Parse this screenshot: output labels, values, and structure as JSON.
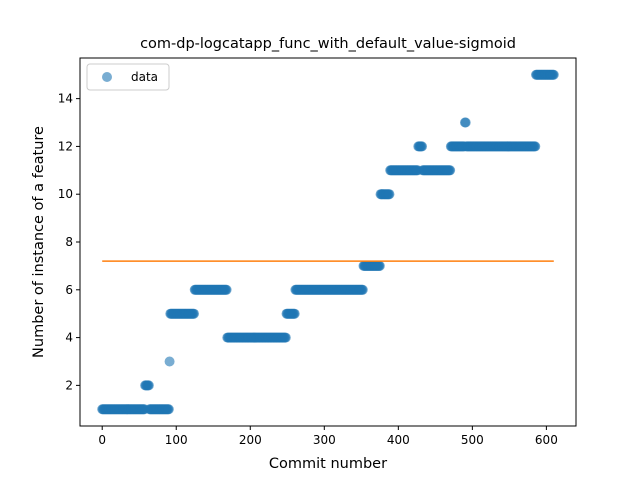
{
  "chart_data": {
    "type": "scatter",
    "title": "com-dp-logcatapp_func_with_default_value-sigmoid",
    "xlabel": "Commit number",
    "ylabel": "Number of instance of a feature",
    "xlim": [
      -30,
      640
    ],
    "ylim": [
      0.3,
      15.7
    ],
    "xticks": [
      0,
      100,
      200,
      300,
      400,
      500,
      600
    ],
    "yticks": [
      2,
      4,
      6,
      8,
      10,
      12,
      14
    ],
    "legend": {
      "position": "upper-left",
      "entries": [
        "data"
      ]
    },
    "colors": {
      "points": "#1f77b4",
      "line": "#ff7f0e"
    },
    "point_segments": [
      {
        "x_start": 0,
        "x_end": 57,
        "y": 1
      },
      {
        "x_start": 58,
        "x_end": 63,
        "y": 2
      },
      {
        "x_start": 64,
        "x_end": 90,
        "y": 1
      },
      {
        "x_start": 91,
        "x_end": 91,
        "y": 3
      },
      {
        "x_start": 92,
        "x_end": 124,
        "y": 5
      },
      {
        "x_start": 125,
        "x_end": 168,
        "y": 6
      },
      {
        "x_start": 169,
        "x_end": 248,
        "y": 4
      },
      {
        "x_start": 249,
        "x_end": 260,
        "y": 5
      },
      {
        "x_start": 261,
        "x_end": 352,
        "y": 6
      },
      {
        "x_start": 353,
        "x_end": 375,
        "y": 7
      },
      {
        "x_start": 376,
        "x_end": 388,
        "y": 10
      },
      {
        "x_start": 389,
        "x_end": 426,
        "y": 11
      },
      {
        "x_start": 427,
        "x_end": 432,
        "y": 12
      },
      {
        "x_start": 433,
        "x_end": 470,
        "y": 11
      },
      {
        "x_start": 471,
        "x_end": 489,
        "y": 12
      },
      {
        "x_start": 490,
        "x_end": 491,
        "y": 13
      },
      {
        "x_start": 492,
        "x_end": 585,
        "y": 12
      },
      {
        "x_start": 586,
        "x_end": 610,
        "y": 15
      }
    ],
    "line": {
      "x": [
        0,
        610
      ],
      "y": [
        7.2,
        7.2
      ]
    }
  }
}
